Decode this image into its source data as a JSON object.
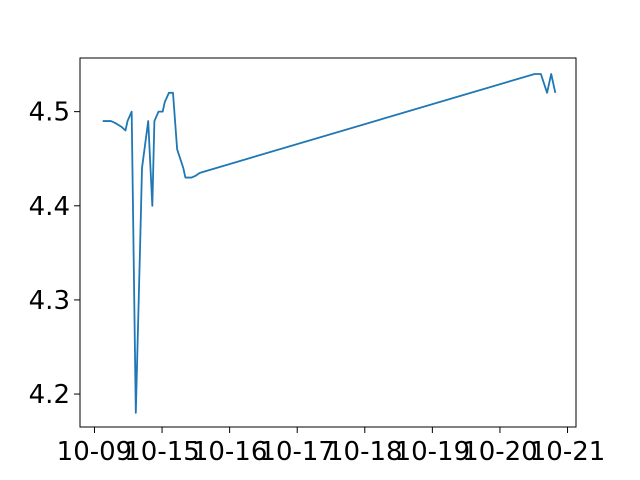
{
  "chart_data": {
    "type": "line",
    "title": "",
    "xlabel": "",
    "ylabel": "",
    "x_tick_labels": [
      "10-09",
      "10-15",
      "10-16",
      "10-17",
      "10-18",
      "10-19",
      "10-20",
      "10-21"
    ],
    "y_tick_labels": [
      "4.2",
      "4.3",
      "4.4",
      "4.5"
    ],
    "y_ticks": [
      4.2,
      4.3,
      4.4,
      4.5
    ],
    "xlim": [
      0,
      24
    ],
    "ylim": [
      4.165,
      4.557
    ],
    "grid": false,
    "series": [
      {
        "color": "#1f77b4",
        "x": [
          1.1,
          1.3,
          1.5,
          1.7,
          2.0,
          2.2,
          2.3,
          2.5,
          2.7,
          2.9,
          3.0,
          3.3,
          3.5,
          3.6,
          3.8,
          4.0,
          4.1,
          4.3,
          4.5,
          4.7,
          5.0,
          5.1,
          5.3,
          5.4,
          5.6,
          5.8,
          22.0,
          22.3,
          22.6,
          22.8,
          23.0
        ],
        "y": [
          4.49,
          4.49,
          4.49,
          4.488,
          4.484,
          4.48,
          4.49,
          4.5,
          4.18,
          4.35,
          4.44,
          4.49,
          4.4,
          4.49,
          4.5,
          4.5,
          4.51,
          4.52,
          4.52,
          4.46,
          4.44,
          4.43,
          4.43,
          4.43,
          4.432,
          4.435,
          4.54,
          4.54,
          4.52,
          4.54,
          4.52
        ]
      }
    ]
  }
}
